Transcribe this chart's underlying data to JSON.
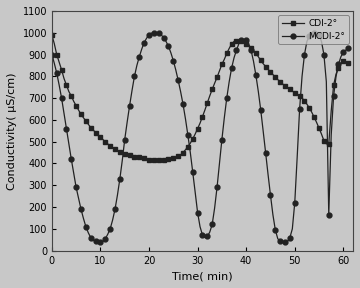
{
  "title": "",
  "xlabel": "Time( min)",
  "ylabel": "Conductivity( μS/cm)",
  "xlim": [
    0,
    62
  ],
  "ylim": [
    0,
    1100
  ],
  "xticks": [
    0,
    10,
    20,
    30,
    40,
    50,
    60
  ],
  "yticks": [
    0,
    100,
    200,
    300,
    400,
    500,
    600,
    700,
    800,
    900,
    1000,
    1100
  ],
  "background_color": "#c8c8c8",
  "plot_bg_color": "#c8c8c8",
  "CDI_x": [
    0,
    0.5,
    1,
    1.5,
    2,
    2.5,
    3,
    3.5,
    4,
    4.5,
    5,
    5.5,
    6,
    6.5,
    7,
    7.5,
    8,
    8.5,
    9,
    9.5,
    10,
    10.5,
    11,
    11.5,
    12,
    12.5,
    13,
    13.5,
    14,
    14.5,
    15,
    15.5,
    16,
    16.5,
    17,
    17.5,
    18,
    18.5,
    19,
    19.5,
    20,
    20.5,
    21,
    21.5,
    22,
    22.5,
    23,
    23.5,
    24,
    24.5,
    25,
    25.5,
    26,
    26.5,
    27,
    27.5,
    28,
    28.5,
    29,
    29.5,
    30,
    30.5,
    31,
    31.5,
    32,
    32.5,
    33,
    33.5,
    34,
    34.5,
    35,
    35.5,
    36,
    36.5,
    37,
    37.5,
    38,
    38.5,
    39,
    39.5,
    40,
    40.5,
    41,
    41.5,
    42,
    42.5,
    43,
    43.5,
    44,
    44.5,
    45,
    45.5,
    46,
    46.5,
    47,
    47.5,
    48,
    48.5,
    49,
    49.5,
    50,
    50.5,
    51,
    51.5,
    52,
    52.5,
    53,
    53.5,
    54,
    54.5,
    55,
    55.5,
    56,
    56.5,
    57,
    57.5,
    58,
    58.5,
    59,
    59.5,
    60,
    60.5,
    61
  ],
  "CDI_y": [
    990,
    950,
    900,
    865,
    830,
    790,
    760,
    730,
    710,
    685,
    665,
    645,
    625,
    610,
    595,
    580,
    565,
    555,
    540,
    530,
    520,
    510,
    500,
    490,
    480,
    473,
    465,
    458,
    452,
    447,
    443,
    440,
    437,
    434,
    432,
    430,
    428,
    425,
    423,
    420,
    418,
    416,
    415,
    415,
    415,
    416,
    417,
    418,
    420,
    422,
    425,
    428,
    433,
    440,
    450,
    463,
    477,
    493,
    513,
    535,
    560,
    585,
    615,
    645,
    678,
    710,
    740,
    768,
    795,
    825,
    855,
    878,
    905,
    928,
    948,
    960,
    962,
    963,
    962,
    960,
    950,
    940,
    930,
    918,
    905,
    890,
    873,
    858,
    845,
    832,
    820,
    808,
    797,
    785,
    775,
    765,
    756,
    748,
    740,
    732,
    724,
    716,
    708,
    700,
    688,
    672,
    655,
    635,
    612,
    588,
    562,
    535,
    505,
    490,
    490,
    640,
    760,
    810,
    840,
    858,
    868,
    865,
    862
  ],
  "MCDI_x": [
    0,
    0.5,
    1,
    1.5,
    2,
    2.5,
    3,
    3.5,
    4,
    4.5,
    5,
    5.5,
    6,
    6.5,
    7,
    7.5,
    8,
    8.5,
    9,
    9.5,
    10,
    10.5,
    11,
    11.5,
    12,
    12.5,
    13,
    13.5,
    14,
    14.5,
    15,
    15.5,
    16,
    16.5,
    17,
    17.5,
    18,
    18.5,
    19,
    19.5,
    20,
    20.5,
    21,
    21.5,
    22,
    22.5,
    23,
    23.5,
    24,
    24.5,
    25,
    25.5,
    26,
    26.5,
    27,
    27.5,
    28,
    28.5,
    29,
    29.5,
    30,
    30.5,
    31,
    31.5,
    32,
    32.5,
    33,
    33.5,
    34,
    34.5,
    35,
    35.5,
    36,
    36.5,
    37,
    37.5,
    38,
    38.5,
    39,
    39.5,
    40,
    40.5,
    41,
    41.5,
    42,
    42.5,
    43,
    43.5,
    44,
    44.5,
    45,
    45.5,
    46,
    46.5,
    47,
    47.5,
    48,
    48.5,
    49,
    49.5,
    50,
    50.5,
    51,
    51.5,
    52,
    52.5,
    53,
    53.5,
    54,
    54.5,
    55,
    55.5,
    56,
    56.5,
    57,
    57.5,
    58,
    58.5,
    59,
    59.5,
    60,
    60.5,
    61
  ],
  "MCDI_y": [
    900,
    860,
    815,
    760,
    700,
    630,
    560,
    490,
    420,
    355,
    290,
    240,
    190,
    148,
    110,
    82,
    60,
    48,
    42,
    40,
    40,
    42,
    55,
    75,
    100,
    140,
    190,
    255,
    330,
    415,
    510,
    590,
    665,
    735,
    800,
    850,
    890,
    925,
    955,
    975,
    990,
    998,
    1000,
    1000,
    998,
    990,
    978,
    960,
    938,
    908,
    872,
    830,
    782,
    730,
    672,
    605,
    530,
    450,
    360,
    268,
    175,
    110,
    72,
    60,
    65,
    85,
    120,
    195,
    290,
    400,
    510,
    610,
    700,
    775,
    838,
    885,
    920,
    950,
    965,
    970,
    968,
    950,
    920,
    870,
    805,
    730,
    645,
    548,
    450,
    350,
    255,
    165,
    95,
    55,
    42,
    38,
    38,
    42,
    60,
    100,
    220,
    430,
    650,
    800,
    900,
    960,
    985,
    998,
    1000,
    1000,
    990,
    960,
    900,
    775,
    165,
    530,
    710,
    800,
    855,
    890,
    910,
    920,
    930
  ],
  "CDI_color": "#222222",
  "MCDI_color": "#222222",
  "CDI_marker": "s",
  "MCDI_marker": "o",
  "CDI_label": "CDI-2°",
  "MCDI_label": "MCDI-2°",
  "marker_size": 3.5,
  "marker_every": 2,
  "line_width": 0.9
}
